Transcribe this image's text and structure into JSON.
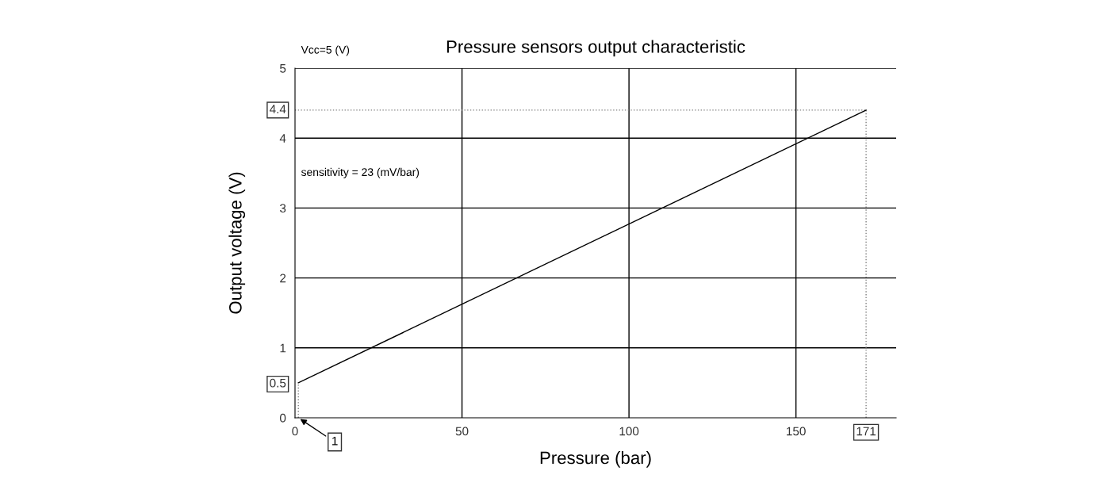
{
  "chart_data": {
    "type": "line",
    "title": "Pressure sensors output characteristic",
    "xlabel": "Pressure (bar)",
    "ylabel": "Output voltage (V)",
    "x": [
      1,
      171
    ],
    "series": [
      {
        "color": "#000000",
        "values": [
          0.5,
          4.4
        ]
      }
    ],
    "xlim": [
      0,
      180
    ],
    "ylim": [
      0,
      5
    ],
    "xticks": [
      0,
      50,
      100,
      150
    ],
    "yticks": [
      0,
      0.5,
      1,
      2,
      3,
      4,
      5
    ],
    "grid": true,
    "marker": "none",
    "line_style": "solid",
    "ref_lines": [
      {
        "axis": "x",
        "value": 1,
        "line_style": "dotted",
        "color": "#808080"
      },
      {
        "axis": "y",
        "value": 4.4,
        "label": "4.4",
        "line_style": "dotted",
        "color": "#808080"
      },
      {
        "axis": "x",
        "value": 171,
        "label": "171",
        "line_style": "dotted",
        "color": "#808080"
      }
    ],
    "annotations": [
      "Vcc=5 (V)",
      "sensitivity = 23 (mV/bar)",
      {
        "text": "1",
        "x": 1,
        "y": 0
      }
    ]
  }
}
